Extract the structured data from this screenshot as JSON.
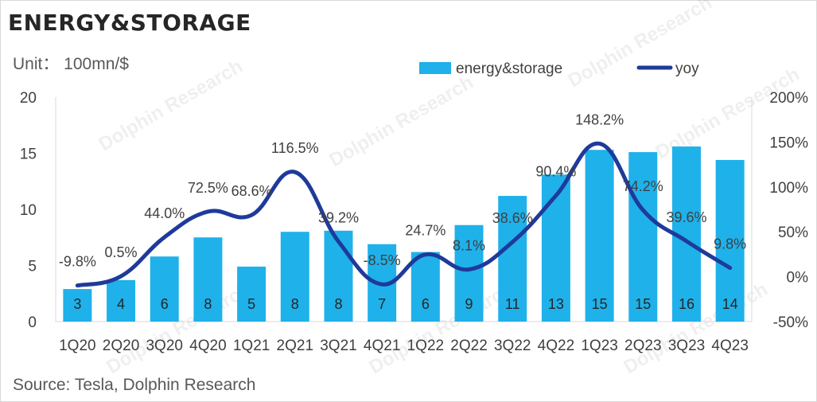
{
  "title": "ENERGY&STORAGE",
  "unit": "Unit： 100mn/$",
  "source": "Source: Tesla, Dolphin Research",
  "watermark": "Dolphin Research",
  "colors": {
    "bar": "#1fb1ea",
    "line": "#1e3a9a"
  },
  "chart_data": {
    "type": "bar+line",
    "categories": [
      "1Q20",
      "2Q20",
      "3Q20",
      "4Q20",
      "1Q21",
      "2Q21",
      "3Q21",
      "4Q21",
      "1Q22",
      "2Q22",
      "3Q22",
      "4Q22",
      "1Q23",
      "2Q23",
      "3Q23",
      "4Q23"
    ],
    "series": [
      {
        "name": "energy&storage",
        "type": "bar",
        "axis": "left",
        "values": [
          2.9,
          3.7,
          5.8,
          7.5,
          4.9,
          8.0,
          8.1,
          6.9,
          6.2,
          8.6,
          11.2,
          13.1,
          15.3,
          15.1,
          15.6,
          14.4
        ],
        "labels": [
          "3",
          "4",
          "6",
          "8",
          "5",
          "8",
          "8",
          "7",
          "6",
          "9",
          "11",
          "13",
          "15",
          "15",
          "16",
          "14"
        ]
      },
      {
        "name": "yoy",
        "type": "line",
        "axis": "right",
        "values": [
          -9.8,
          0.5,
          44.0,
          72.5,
          68.6,
          116.5,
          39.2,
          -8.5,
          24.7,
          8.1,
          38.6,
          90.4,
          148.2,
          74.2,
          39.6,
          9.8
        ],
        "labels": [
          "-9.8%",
          "0.5%",
          "44.0%",
          "72.5%",
          "68.6%",
          "116.5%",
          "39.2%",
          "-8.5%",
          "24.7%",
          "8.1%",
          "38.6%",
          "90.4%",
          "148.2%",
          "74.2%",
          "39.6%",
          "9.8%"
        ]
      }
    ],
    "y_left": {
      "min": 0,
      "max": 20,
      "ticks": [
        "0",
        "5",
        "10",
        "15",
        "20"
      ]
    },
    "y_right": {
      "min": -50,
      "max": 200,
      "ticks": [
        "-50%",
        "0%",
        "50%",
        "100%",
        "150%",
        "200%"
      ]
    },
    "legend": [
      "energy&storage",
      "yoy"
    ],
    "legend_position": "top-right"
  }
}
